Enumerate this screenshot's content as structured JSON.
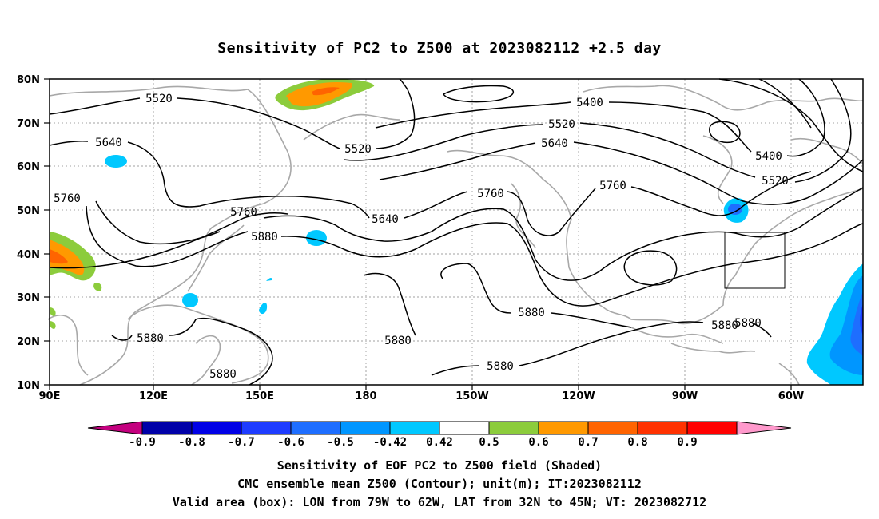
{
  "title": "Sensitivity of PC2 to Z500 at 2023082112 +2.5 day",
  "map": {
    "lat_labels": [
      "80N",
      "70N",
      "60N",
      "50N",
      "40N",
      "30N",
      "20N",
      "10N"
    ],
    "lon_labels": [
      "90E",
      "120E",
      "150E",
      "180",
      "150W",
      "120W",
      "90W",
      "60W"
    ],
    "contour_labels": [
      "5520",
      "5640",
      "5760",
      "5520",
      "5760",
      "5880",
      "5640",
      "5760",
      "5400",
      "5520",
      "5640",
      "5760",
      "5400",
      "5520",
      "5880",
      "5880",
      "5880",
      "5880",
      "5880",
      "5880",
      "5880"
    ],
    "box": {
      "lon_from": "79W",
      "lon_to": "62W",
      "lat_from": "32N",
      "lat_to": "45N"
    }
  },
  "colorbar": {
    "labels": [
      "-0.9",
      "-0.8",
      "-0.7",
      "-0.6",
      "-0.5",
      "-0.42",
      "0.42",
      "0.5",
      "0.6",
      "0.7",
      "0.8",
      "0.9"
    ],
    "colors": [
      "#c4007f",
      "#0000a8",
      "#0000e6",
      "#1e3cff",
      "#1e6eff",
      "#0096ff",
      "#00c8ff",
      "#ffffff",
      "#8ccc3c",
      "#ff9900",
      "#ff6400",
      "#ff3200",
      "#ff0000",
      "#ff99cc"
    ]
  },
  "captions": {
    "line1": "Sensitivity of EOF PC2 to Z500 field (Shaded)",
    "line2": "CMC ensemble mean Z500 (Contour); unit(m); IT:2023082112",
    "line3": "Valid area (box): LON from 79W to 62W, LAT from 32N to 45N; VT: 2023082712"
  }
}
